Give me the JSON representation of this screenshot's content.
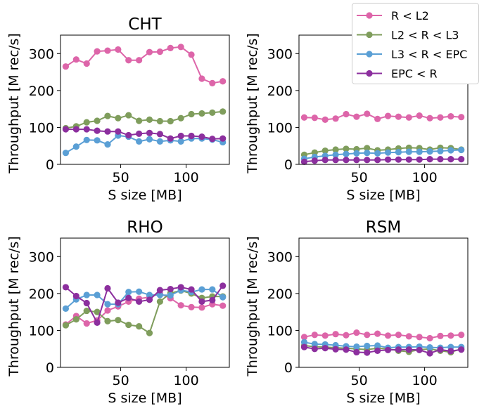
{
  "chart_data": [
    {
      "type": "line",
      "title": "CHT",
      "xlabel": "S size [MB]",
      "ylabel": "Throughput [M rec/s]",
      "xlim": [
        4,
        133
      ],
      "ylim": [
        0,
        350
      ],
      "xticks": [
        50,
        100
      ],
      "yticks": [
        0,
        100,
        200,
        300
      ],
      "x": [
        8,
        16,
        24,
        32,
        40,
        48,
        56,
        64,
        72,
        80,
        88,
        96,
        104,
        112,
        120,
        128
      ],
      "series": [
        {
          "name": "R < L2",
          "values": [
            265,
            284,
            273,
            306,
            308,
            311,
            282,
            282,
            304,
            305,
            315,
            318,
            297,
            232,
            220,
            225
          ]
        },
        {
          "name": "L2 < R < L3",
          "values": [
            98,
            103,
            114,
            118,
            131,
            125,
            133,
            118,
            121,
            117,
            117,
            125,
            136,
            138,
            140,
            143
          ]
        },
        {
          "name": "L3 < R < EPC",
          "values": [
            31,
            48,
            66,
            65,
            54,
            78,
            75,
            62,
            68,
            62,
            65,
            62,
            70,
            70,
            67,
            60
          ]
        },
        {
          "name": "EPC < R",
          "values": [
            95,
            95,
            95,
            91,
            89,
            89,
            79,
            83,
            85,
            82,
            70,
            77,
            77,
            75,
            69,
            70
          ]
        }
      ]
    },
    {
      "type": "line",
      "title": "",
      "xlabel": "S size [MB]",
      "ylabel": "Throughput [M rec/s]",
      "xlim": [
        4,
        133
      ],
      "ylim": [
        0,
        350
      ],
      "xticks": [
        50,
        100
      ],
      "yticks": [
        0,
        100,
        200,
        300
      ],
      "x": [
        8,
        16,
        24,
        32,
        40,
        48,
        56,
        64,
        72,
        80,
        88,
        96,
        104,
        112,
        120,
        128
      ],
      "series": [
        {
          "name": "R < L2",
          "values": [
            127,
            126,
            121,
            124,
            136,
            129,
            137,
            123,
            131,
            129,
            127,
            132,
            125,
            127,
            130,
            128
          ]
        },
        {
          "name": "L2 < R < L3",
          "values": [
            26,
            32,
            37,
            40,
            42,
            41,
            44,
            38,
            40,
            43,
            45,
            44,
            40,
            45,
            44,
            40
          ]
        },
        {
          "name": "L3 < R < EPC",
          "values": [
            15,
            20,
            23,
            26,
            28,
            30,
            31,
            30,
            32,
            33,
            34,
            34,
            35,
            36,
            38,
            39
          ]
        },
        {
          "name": "EPC < R",
          "values": [
            7,
            10,
            12,
            12,
            12,
            12,
            12,
            12,
            13,
            13,
            13,
            13,
            14,
            14,
            14,
            14
          ]
        }
      ]
    },
    {
      "type": "line",
      "title": "RHO",
      "xlabel": "S size [MB]",
      "ylabel": "Throughput [M rec/s]",
      "xlim": [
        4,
        133
      ],
      "ylim": [
        0,
        350
      ],
      "xticks": [
        50,
        100
      ],
      "yticks": [
        0,
        100,
        200,
        300
      ],
      "x": [
        8,
        16,
        24,
        32,
        40,
        48,
        56,
        64,
        72,
        80,
        88,
        96,
        104,
        112,
        120,
        128
      ],
      "series": [
        {
          "name": "R < L2",
          "values": [
            116,
            139,
            119,
            127,
            154,
            165,
            178,
            186,
            190,
            200,
            187,
            168,
            163,
            162,
            171,
            167
          ]
        },
        {
          "name": "L2 < R < L3",
          "values": [
            114,
            130,
            153,
            150,
            125,
            128,
            115,
            111,
            93,
            178,
            201,
            208,
            200,
            188,
            192,
            192
          ]
        },
        {
          "name": "L3 < R < EPC",
          "values": [
            159,
            184,
            196,
            196,
            171,
            171,
            204,
            205,
            196,
            196,
            195,
            209,
            204,
            211,
            211,
            190
          ]
        },
        {
          "name": "EPC < R",
          "values": [
            217,
            193,
            174,
            121,
            214,
            175,
            188,
            178,
            183,
            209,
            212,
            217,
            211,
            178,
            182,
            221
          ]
        }
      ]
    },
    {
      "type": "line",
      "title": "RSM",
      "xlabel": "S size [MB]",
      "ylabel": "Throughput [M rec/s]",
      "xlim": [
        4,
        133
      ],
      "ylim": [
        0,
        350
      ],
      "xticks": [
        50,
        100
      ],
      "yticks": [
        0,
        100,
        200,
        300
      ],
      "x": [
        8,
        16,
        24,
        32,
        40,
        48,
        56,
        64,
        72,
        80,
        88,
        96,
        104,
        112,
        120,
        128
      ],
      "series": [
        {
          "name": "R < L2",
          "values": [
            82,
            88,
            86,
            90,
            87,
            94,
            88,
            91,
            86,
            88,
            84,
            82,
            79,
            85,
            86,
            88
          ]
        },
        {
          "name": "L2 < R < L3",
          "values": [
            59,
            56,
            55,
            53,
            52,
            50,
            48,
            52,
            50,
            45,
            42,
            48,
            50,
            45,
            41,
            50
          ]
        },
        {
          "name": "L3 < R < EPC",
          "values": [
            68,
            63,
            62,
            60,
            57,
            56,
            58,
            59,
            53,
            55,
            55,
            56,
            54,
            53,
            55,
            55
          ]
        },
        {
          "name": "EPC < R",
          "values": [
            55,
            50,
            52,
            49,
            48,
            41,
            40,
            45,
            47,
            48,
            48,
            47,
            38,
            48,
            44,
            48
          ]
        }
      ]
    }
  ],
  "legend": {
    "placement": "top-right",
    "entries": [
      {
        "label": "R < L2",
        "color": "#dd65a9"
      },
      {
        "label": "L2 < R < L3",
        "color": "#7f9d5c"
      },
      {
        "label": "L3 < R < EPC",
        "color": "#5a9fd5"
      },
      {
        "label": "EPC < R",
        "color": "#8c2f9e"
      }
    ]
  },
  "series_colors": [
    "#dd65a9",
    "#7f9d5c",
    "#5a9fd5",
    "#8c2f9e"
  ]
}
